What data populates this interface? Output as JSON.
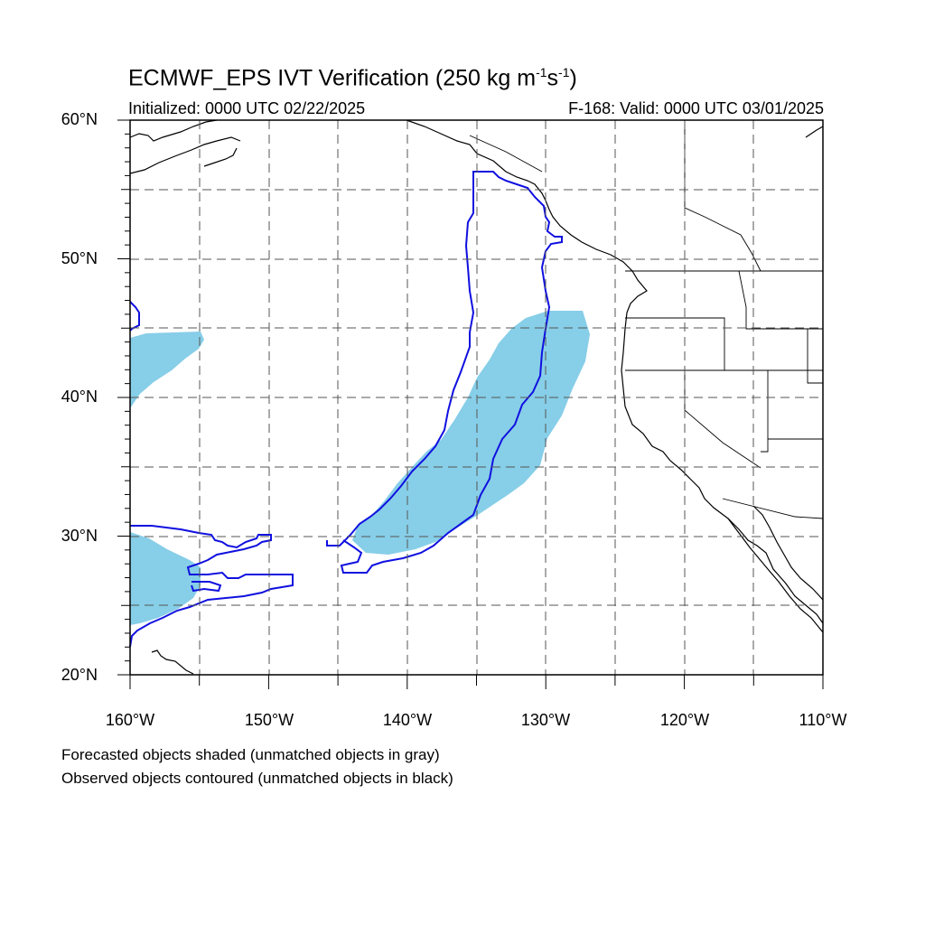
{
  "title": {
    "main": "ECMWF_EPS IVT Verification (250 kg m",
    "exp1": "-1",
    "mid": "s",
    "exp2": "-1",
    "end": ")"
  },
  "subtitle": {
    "initialized": "Initialized: 0000 UTC 02/22/2025",
    "valid": "F-168: Valid: 0000 UTC 03/01/2025"
  },
  "axes": {
    "lat_labels": [
      "60°N",
      "50°N",
      "40°N",
      "30°N",
      "20°N"
    ],
    "lon_labels": [
      "160°W",
      "150°W",
      "140°W",
      "130°W",
      "120°W",
      "110°W"
    ],
    "lon_range": [
      -160,
      -110
    ],
    "lat_range": [
      20,
      60
    ],
    "grid": true
  },
  "legend": {
    "line1": "Forecasted objects shaded (unmatched objects in gray)",
    "line2": "Observed objects contoured (unmatched objects in black)"
  },
  "colors": {
    "forecast_fill": "#87CEE8",
    "observed_contour": "#1010E0",
    "coastline": "#000000",
    "grid": "#555555"
  }
}
